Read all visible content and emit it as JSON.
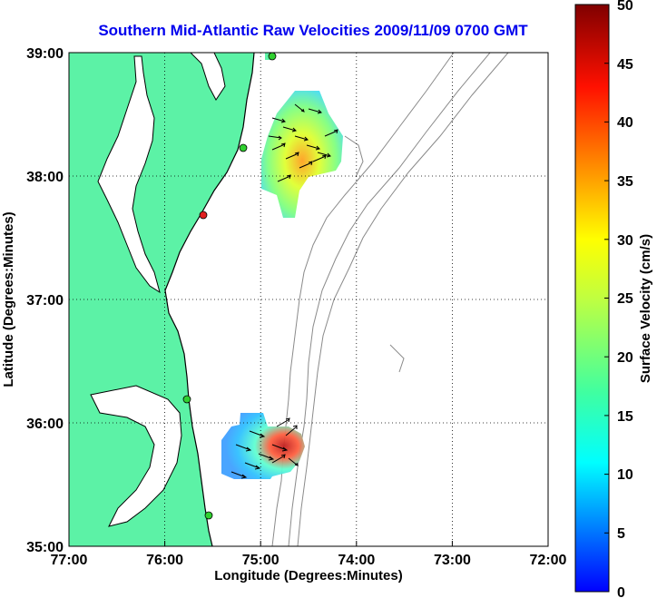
{
  "title": "Southern Mid-Atlantic Raw Velocities 2009/11/09 0700 GMT",
  "x_axis": {
    "label": "Longitude (Degrees:Minutes)",
    "ticks": [
      "77:00",
      "76:00",
      "75:00",
      "74:00",
      "73:00",
      "72:00"
    ]
  },
  "y_axis": {
    "label": "Latitude (Degrees:Minutes)",
    "ticks": [
      "39:00",
      "38:00",
      "37:00",
      "36:00",
      "35:00"
    ]
  },
  "colorbar": {
    "label": "Surface Velocity (cm/s)",
    "ticks": [
      "50",
      "45",
      "40",
      "35",
      "30",
      "25",
      "20",
      "15",
      "10",
      "5",
      "0"
    ],
    "min": 0,
    "max": 50
  },
  "colors": {
    "land": "#5cf2a6",
    "water": "#ffffff",
    "coast": "#000000",
    "bathymetry": "#8a8a8a",
    "grid": "#000000",
    "title": "#0000ee"
  },
  "map": {
    "lon_range": [
      -77.0,
      -72.0
    ],
    "lat_range": [
      35.0,
      39.0
    ],
    "grid": "dotted"
  }
}
